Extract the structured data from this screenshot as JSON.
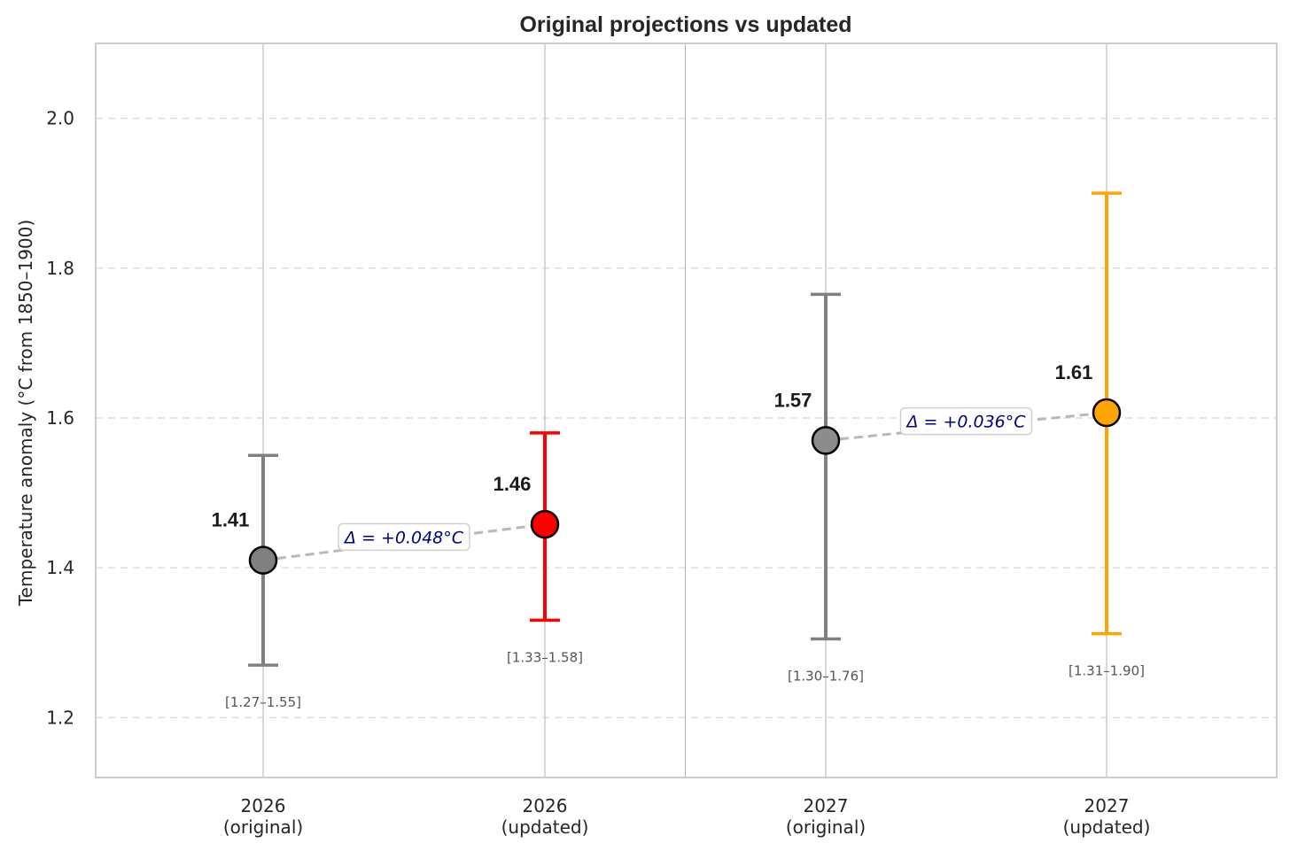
{
  "chart_data": {
    "type": "scatter",
    "title": "Original projections vs updated",
    "ylabel": "Temperature anomaly (°C from 1850–1900)",
    "xlabel": "",
    "ylim": [
      1.12,
      2.1
    ],
    "yticks": [
      1.2,
      1.4,
      1.6,
      1.8,
      2.0
    ],
    "ytick_labels": [
      "1.2",
      "1.4",
      "1.6",
      "1.8",
      "2.0"
    ],
    "grid": true,
    "categories": [
      {
        "line1": "2026",
        "line2": "(original)"
      },
      {
        "line1": "2026",
        "line2": "(updated)"
      },
      {
        "line1": "2027",
        "line2": "(original)"
      },
      {
        "line1": "2027",
        "line2": "(updated)"
      }
    ],
    "points": [
      {
        "value": 1.41,
        "low": 1.27,
        "high": 1.55,
        "label": "1.41",
        "range_label": "[1.27–1.55]",
        "color": "#808080",
        "bar_color": "#808080"
      },
      {
        "value": 1.458,
        "low": 1.33,
        "high": 1.58,
        "label": "1.46",
        "range_label": "[1.33–1.58]",
        "color": "#ff0000",
        "bar_color": "#ff0000"
      },
      {
        "value": 1.57,
        "low": 1.305,
        "high": 1.765,
        "label": "1.57",
        "range_label": "[1.30–1.76]",
        "color": "#8c8c8c",
        "bar_color": "#808080"
      },
      {
        "value": 1.607,
        "low": 1.312,
        "high": 1.9,
        "label": "1.61",
        "range_label": "[1.31–1.90]",
        "color": "#ffa500",
        "bar_color": "#ffa500"
      }
    ],
    "deltas": [
      {
        "from": 0,
        "to": 1,
        "text": "Δ = +0.048°C"
      },
      {
        "from": 2,
        "to": 3,
        "text": "Δ = +0.036°C"
      }
    ],
    "separator_between": [
      1,
      2
    ]
  }
}
